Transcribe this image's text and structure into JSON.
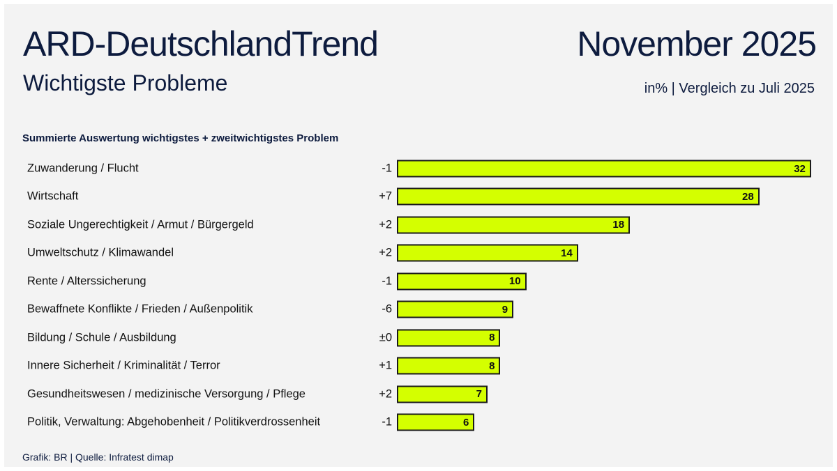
{
  "header": {
    "title": "ARD-DeutschlandTrend",
    "subtitle": "Wichtigste Probleme",
    "date": "November 2025",
    "unit_note": "in% | Vergleich zu Juli 2025"
  },
  "footer": {
    "source": "Grafik: BR | Quelle: Infratest dimap"
  },
  "chart_data": {
    "type": "bar",
    "orientation": "horizontal",
    "title": "Summierte Auswertung wichtigstes + zweitwichtigstes Problem",
    "categories": [
      "Zuwanderung / Flucht",
      "Wirtschaft",
      "Soziale Ungerechtigkeit / Armut / Bürgergeld",
      "Umweltschutz / Klimawandel",
      "Rente / Alterssicherung",
      "Bewaffnete Konflikte / Frieden / Außenpolitik",
      "Bildung / Schule / Ausbildung",
      "Innere Sicherheit / Kriminalität / Terror",
      "Gesundheitswesen / medizinische Versorgung / Pflege",
      "Politik, Verwaltung: Abgehobenheit / Politikverdrossenheit"
    ],
    "values": [
      32,
      28,
      18,
      14,
      10,
      9,
      8,
      8,
      7,
      6
    ],
    "changes": [
      "-1",
      "+7",
      "+2",
      "+2",
      "-1",
      "-6",
      "±0",
      "+1",
      "+2",
      "-1"
    ],
    "bar_color": "#d4ff00",
    "grid": false
  }
}
